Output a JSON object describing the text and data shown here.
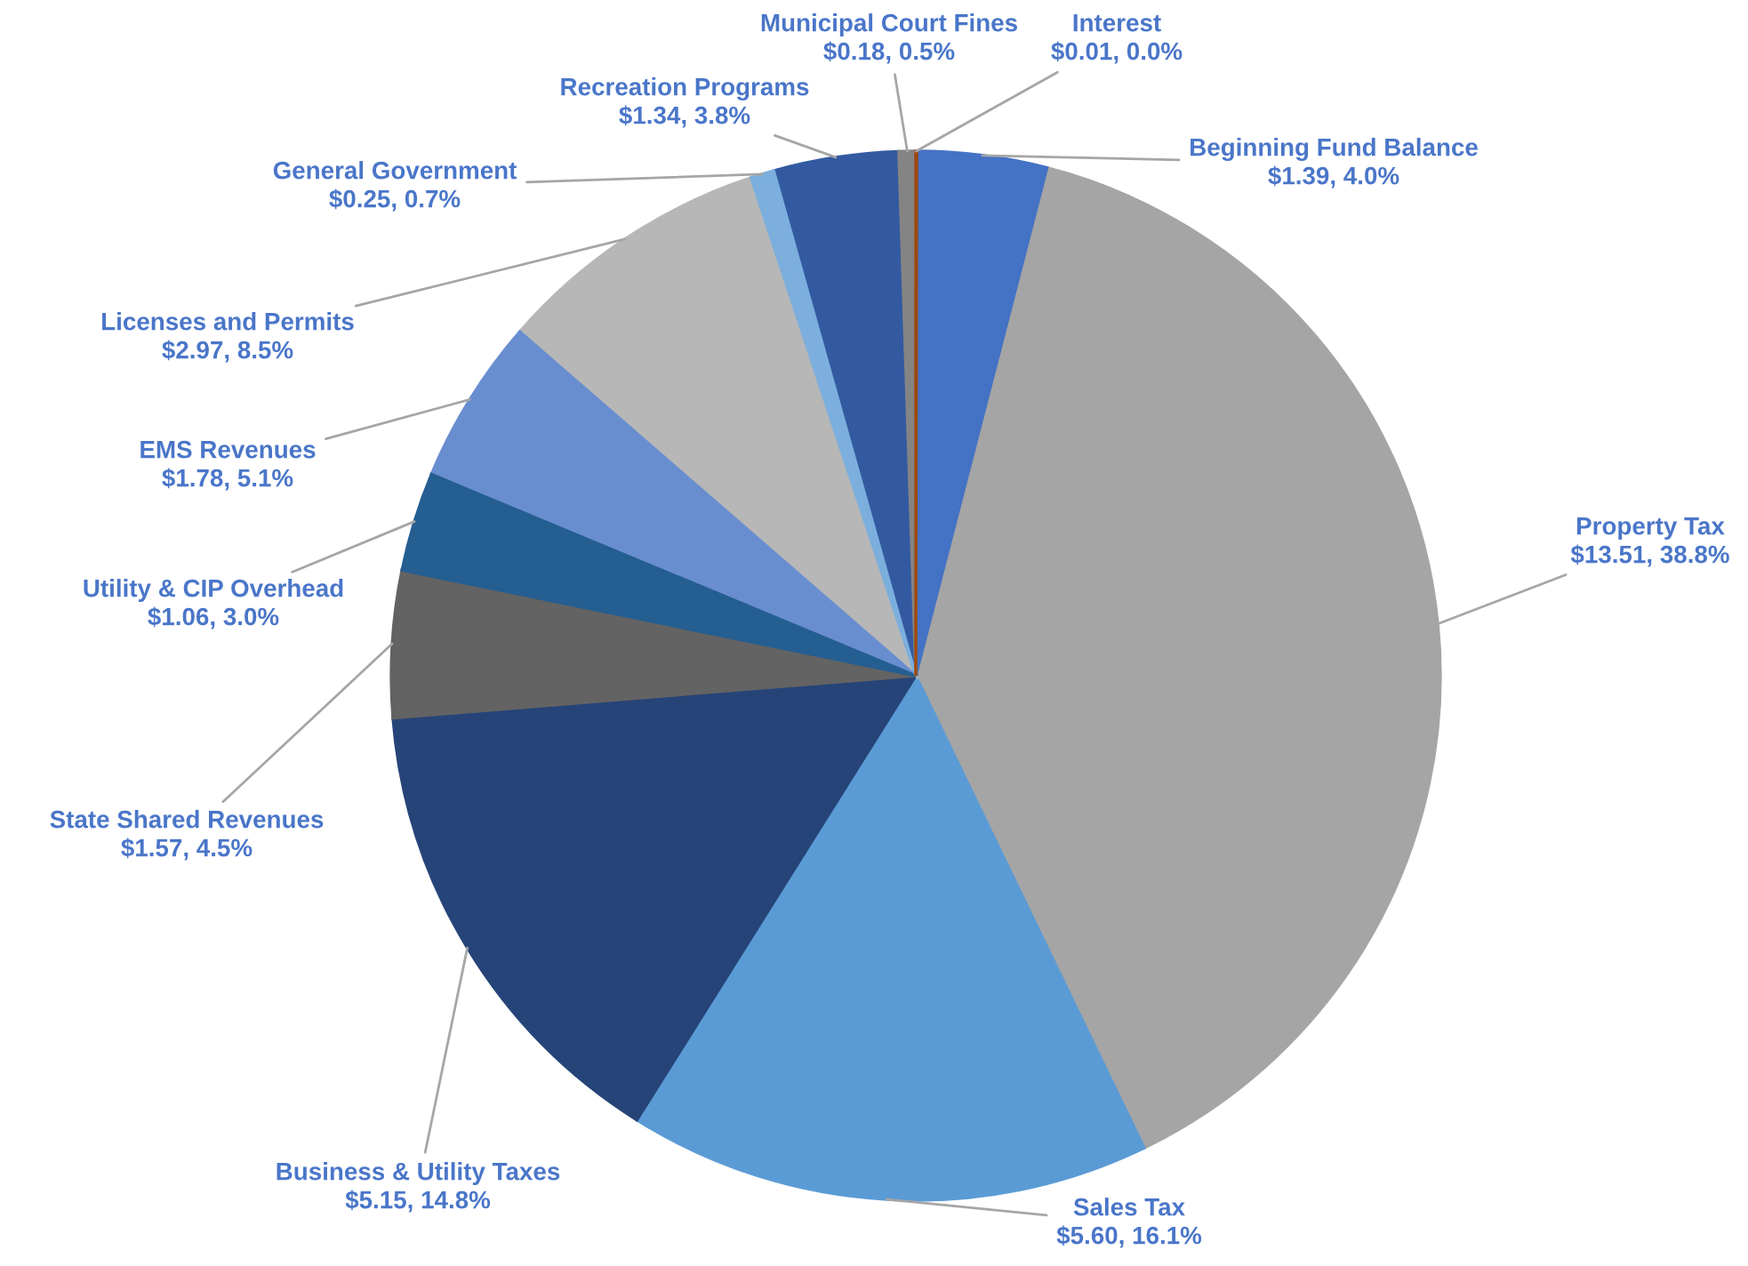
{
  "chart_data": {
    "type": "pie",
    "categories": [
      "Interest",
      "Beginning Fund Balance",
      "Property Tax",
      "Sales Tax",
      "Business & Utility Taxes",
      "State Shared Revenues",
      "Utility & CIP Overhead",
      "EMS Revenues",
      "Licenses and Permits",
      "General Government",
      "Recreation Programs",
      "Municipal Court Fines"
    ],
    "values": [
      0.01,
      1.39,
      13.51,
      5.6,
      5.15,
      1.57,
      1.06,
      1.78,
      2.97,
      0.25,
      1.34,
      0.18
    ],
    "value_labels": [
      "$0.01, 0.0%",
      "$1.39, 4.0%",
      "$13.51, 38.8%",
      "$5.60, 16.1%",
      "$5.15, 14.8%",
      "$1.57, 4.5%",
      "$1.06, 3.0%",
      "$1.78, 5.1%",
      "$2.97, 8.5%",
      "$0.25, 0.7%",
      "$1.34, 3.8%",
      "$0.18, 0.5%"
    ],
    "colors": [
      "#9e480e",
      "#4472c4",
      "#a5a5a5",
      "#5b9bd5",
      "#264478",
      "#636363",
      "#255e91",
      "#698ed0",
      "#b7b7b7",
      "#7cafdd",
      "#335aa1",
      "#848484"
    ],
    "legend": false
  }
}
